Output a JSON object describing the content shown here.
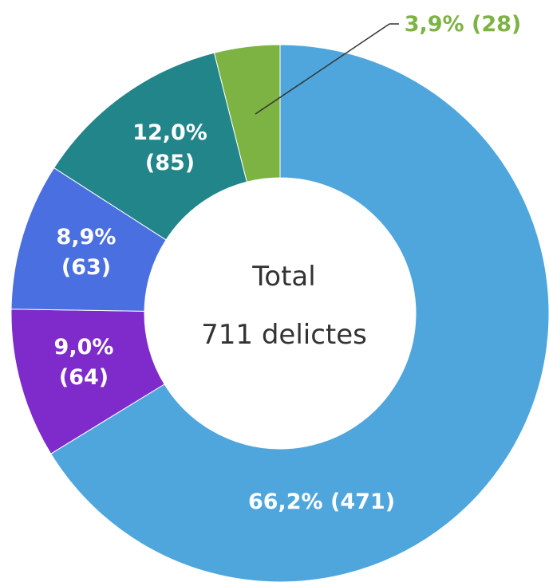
{
  "chart_data": {
    "type": "donut",
    "center_text": [
      "Total",
      "711 delictes"
    ],
    "values": [
      471,
      64,
      63,
      85,
      28
    ],
    "value_labels": [
      "66,2% (471)",
      "9,0% (64)",
      "8,9% (63)",
      "12,0% (85)",
      "3,9% (28)"
    ],
    "colors": [
      "#4fa6dc",
      "#7f2bcc",
      "#4a6fe0",
      "#21858a",
      "#7cb342"
    ]
  }
}
